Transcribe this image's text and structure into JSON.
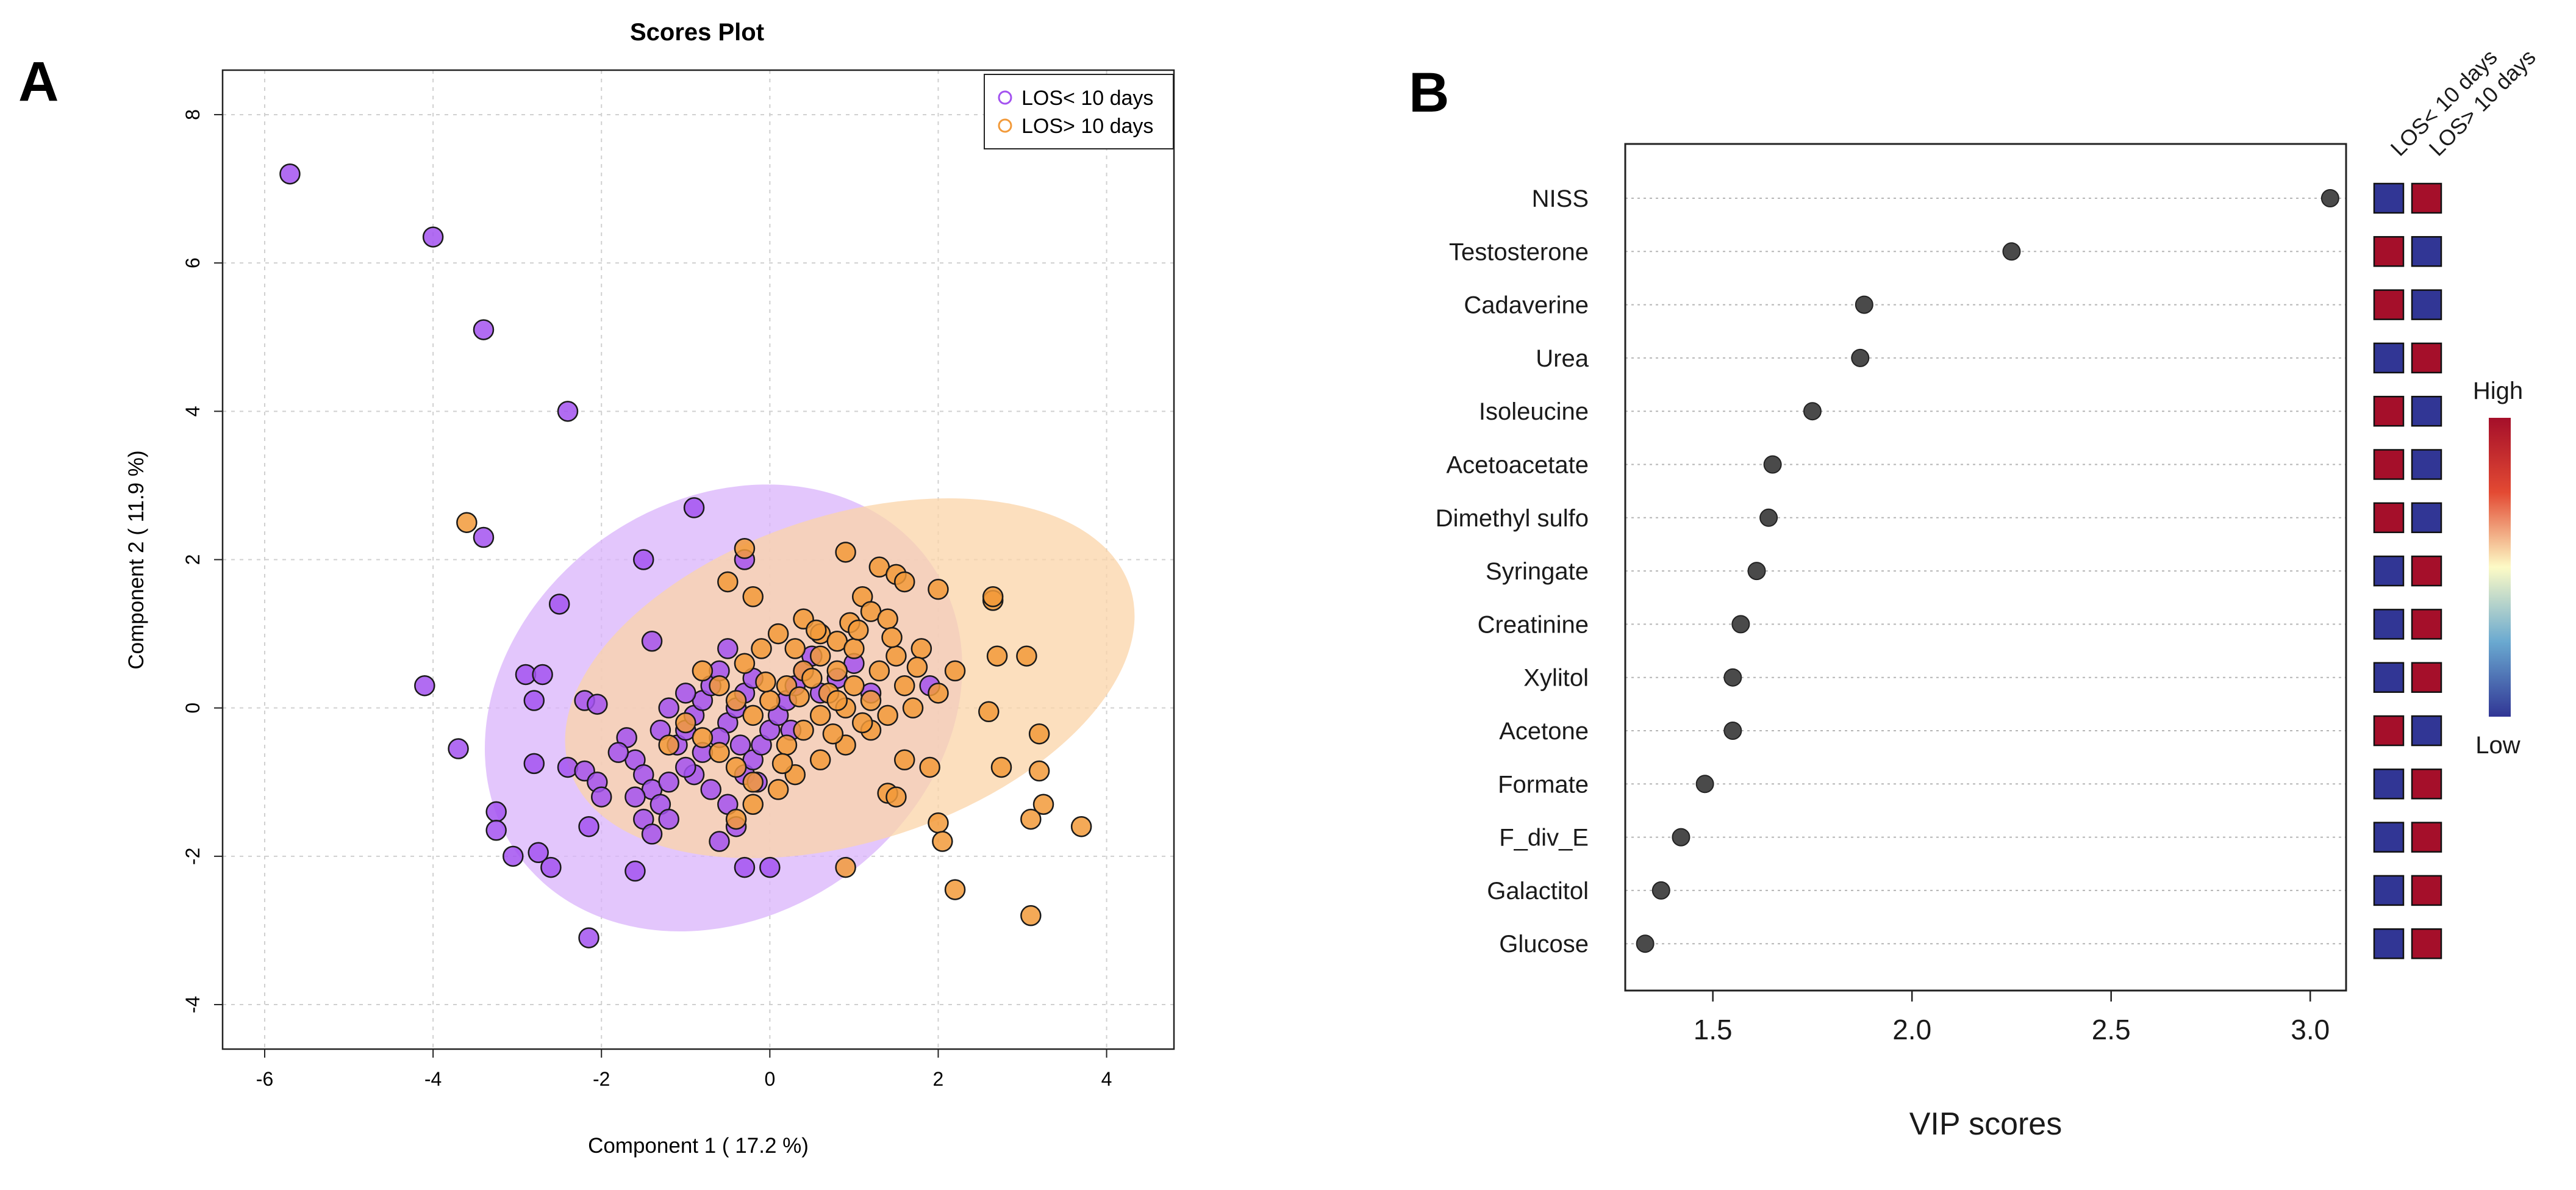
{
  "panels": {
    "a_label": "A",
    "b_label": "B"
  },
  "chart_data": [
    {
      "type": "scatter",
      "title": "Scores Plot",
      "xlabel": "Component 1 ( 17.2 %)",
      "ylabel": "Component 2 ( 11.9 %)",
      "xlim": [
        -6.5,
        4.8
      ],
      "ylim": [
        -4.6,
        8.6
      ],
      "xticks": [
        -6,
        -4,
        -2,
        0,
        2,
        4
      ],
      "yticks": [
        -4,
        -2,
        0,
        2,
        4,
        6,
        8
      ],
      "grid": true,
      "legend_position": "top-right",
      "series": [
        {
          "name": "LOS< 10 days",
          "color": "#a352f0",
          "ellipse": {
            "center": [
              -0.55,
              0.0
            ],
            "rx": 3.0,
            "ry": 2.8,
            "rotation_deg": 35,
            "fill": "#d9b3fb"
          },
          "points": [
            [
              -5.7,
              7.2
            ],
            [
              -4.0,
              6.35
            ],
            [
              -3.4,
              5.1
            ],
            [
              -2.4,
              4.0
            ],
            [
              -0.9,
              2.7
            ],
            [
              -3.4,
              2.3
            ],
            [
              -0.3,
              2.0
            ],
            [
              -1.5,
              2.0
            ],
            [
              -2.5,
              1.4
            ],
            [
              -1.4,
              0.9
            ],
            [
              -0.5,
              0.8
            ],
            [
              -4.1,
              0.3
            ],
            [
              -2.9,
              0.45
            ],
            [
              -2.7,
              0.45
            ],
            [
              -2.8,
              0.1
            ],
            [
              -2.2,
              0.1
            ],
            [
              -2.05,
              0.05
            ],
            [
              -3.7,
              -0.55
            ],
            [
              -2.8,
              -0.75
            ],
            [
              -2.4,
              -0.8
            ],
            [
              -2.2,
              -0.85
            ],
            [
              -2.05,
              -1.0
            ],
            [
              -2.0,
              -1.2
            ],
            [
              -3.25,
              -1.4
            ],
            [
              -3.25,
              -1.65
            ],
            [
              -3.05,
              -2.0
            ],
            [
              -2.75,
              -1.95
            ],
            [
              -2.6,
              -2.15
            ],
            [
              -2.15,
              -1.6
            ],
            [
              -1.6,
              -2.2
            ],
            [
              -2.15,
              -3.1
            ],
            [
              -0.3,
              -2.15
            ],
            [
              0.0,
              -2.15
            ],
            [
              -1.6,
              -0.7
            ],
            [
              -1.5,
              -0.9
            ],
            [
              -1.4,
              -1.1
            ],
            [
              -1.3,
              -1.3
            ],
            [
              -1.5,
              -1.5
            ],
            [
              -1.4,
              -1.7
            ],
            [
              -1.2,
              -1.5
            ],
            [
              -1.6,
              -1.2
            ],
            [
              -1.1,
              -0.5
            ],
            [
              -1.0,
              -0.3
            ],
            [
              -0.9,
              -0.1
            ],
            [
              -0.8,
              0.1
            ],
            [
              -0.7,
              0.3
            ],
            [
              -0.6,
              0.5
            ],
            [
              -1.3,
              -0.3
            ],
            [
              -1.2,
              0.0
            ],
            [
              -1.0,
              0.2
            ],
            [
              -0.5,
              -0.2
            ],
            [
              -0.4,
              0.0
            ],
            [
              -0.3,
              0.2
            ],
            [
              -0.2,
              0.4
            ],
            [
              -0.9,
              -0.9
            ],
            [
              -0.7,
              -1.1
            ],
            [
              -0.5,
              -1.3
            ],
            [
              -0.3,
              -0.9
            ],
            [
              -0.2,
              -0.7
            ],
            [
              -0.1,
              -0.5
            ],
            [
              0.0,
              -0.3
            ],
            [
              0.1,
              -0.1
            ],
            [
              0.2,
              0.1
            ],
            [
              0.3,
              0.3
            ],
            [
              0.4,
              0.5
            ],
            [
              0.5,
              0.7
            ],
            [
              -0.6,
              -0.4
            ],
            [
              -0.8,
              -0.6
            ],
            [
              -1.0,
              -0.8
            ],
            [
              -1.2,
              -1.0
            ],
            [
              -0.4,
              -1.6
            ],
            [
              -0.6,
              -1.8
            ],
            [
              0.6,
              0.2
            ],
            [
              0.8,
              0.4
            ],
            [
              1.0,
              0.6
            ],
            [
              1.2,
              0.2
            ],
            [
              1.9,
              0.3
            ],
            [
              -1.7,
              -0.4
            ],
            [
              -1.8,
              -0.6
            ],
            [
              -0.15,
              -1.0
            ],
            [
              -0.35,
              -0.5
            ],
            [
              0.25,
              -0.3
            ]
          ]
        },
        {
          "name": "LOS> 10 days",
          "color": "#f29a3a",
          "ellipse": {
            "center": [
              0.95,
              0.4
            ],
            "rx": 3.5,
            "ry": 2.2,
            "rotation_deg": 18,
            "fill": "#fbd4a8"
          },
          "points": [
            [
              -3.6,
              2.5
            ],
            [
              -0.3,
              2.15
            ],
            [
              0.9,
              2.1
            ],
            [
              1.3,
              1.9
            ],
            [
              1.5,
              1.8
            ],
            [
              1.6,
              1.7
            ],
            [
              2.0,
              1.6
            ],
            [
              2.65,
              1.45
            ],
            [
              2.65,
              1.5
            ],
            [
              1.1,
              1.5
            ],
            [
              1.2,
              1.3
            ],
            [
              1.4,
              1.2
            ],
            [
              -0.5,
              1.7
            ],
            [
              -0.2,
              1.5
            ],
            [
              0.4,
              1.2
            ],
            [
              0.6,
              1.0
            ],
            [
              0.8,
              0.9
            ],
            [
              1.0,
              0.8
            ],
            [
              1.5,
              0.7
            ],
            [
              1.8,
              0.8
            ],
            [
              2.7,
              0.7
            ],
            [
              3.05,
              0.7
            ],
            [
              2.2,
              0.5
            ],
            [
              2.0,
              0.2
            ],
            [
              1.7,
              0.0
            ],
            [
              1.4,
              -0.1
            ],
            [
              1.2,
              -0.3
            ],
            [
              0.9,
              -0.5
            ],
            [
              0.6,
              -0.7
            ],
            [
              0.3,
              -0.9
            ],
            [
              0.1,
              -1.1
            ],
            [
              -0.2,
              -1.3
            ],
            [
              -0.4,
              -1.5
            ],
            [
              2.6,
              -0.05
            ],
            [
              3.2,
              -0.35
            ],
            [
              3.2,
              -0.85
            ],
            [
              2.75,
              -0.8
            ],
            [
              3.25,
              -1.3
            ],
            [
              3.1,
              -1.5
            ],
            [
              3.7,
              -1.6
            ],
            [
              2.0,
              -1.55
            ],
            [
              2.05,
              -1.8
            ],
            [
              2.2,
              -2.45
            ],
            [
              3.1,
              -2.8
            ],
            [
              0.9,
              -2.15
            ],
            [
              1.4,
              -1.15
            ],
            [
              1.5,
              -1.2
            ],
            [
              1.9,
              -0.8
            ],
            [
              1.6,
              -0.7
            ],
            [
              -0.8,
              0.5
            ],
            [
              -0.6,
              0.3
            ],
            [
              -0.4,
              0.1
            ],
            [
              -0.2,
              -0.1
            ],
            [
              0.0,
              0.1
            ],
            [
              0.2,
              0.3
            ],
            [
              0.4,
              0.5
            ],
            [
              0.6,
              0.7
            ],
            [
              0.8,
              0.5
            ],
            [
              1.0,
              0.3
            ],
            [
              1.2,
              0.1
            ],
            [
              -0.3,
              0.6
            ],
            [
              -0.1,
              0.8
            ],
            [
              0.1,
              1.0
            ],
            [
              0.3,
              0.8
            ],
            [
              0.5,
              0.4
            ],
            [
              0.7,
              0.2
            ],
            [
              0.9,
              0.0
            ],
            [
              1.1,
              -0.2
            ],
            [
              -1.0,
              -0.2
            ],
            [
              -0.8,
              -0.4
            ],
            [
              -0.6,
              -0.6
            ],
            [
              -0.4,
              -0.8
            ],
            [
              -0.2,
              -1.0
            ],
            [
              0.2,
              -0.5
            ],
            [
              0.4,
              -0.3
            ],
            [
              0.6,
              -0.1
            ],
            [
              0.8,
              0.1
            ],
            [
              1.3,
              0.5
            ],
            [
              1.6,
              0.3
            ],
            [
              1.75,
              0.55
            ],
            [
              1.45,
              0.95
            ],
            [
              0.95,
              1.15
            ],
            [
              0.55,
              1.05
            ],
            [
              -1.2,
              -0.5
            ],
            [
              0.15,
              -0.75
            ],
            [
              0.75,
              -0.35
            ],
            [
              1.05,
              1.05
            ],
            [
              0.35,
              0.15
            ],
            [
              -0.05,
              0.35
            ]
          ]
        }
      ]
    },
    {
      "type": "dot",
      "xlabel": "VIP scores",
      "xlim": [
        1.28,
        3.09
      ],
      "xticks": [
        "1.5",
        "2.0",
        "2.5",
        "3.0"
      ],
      "grid": true,
      "features": [
        "NISS",
        "Testosterone",
        "Cadaverine",
        "Urea",
        "Isoleucine",
        "Acetoacetate",
        "Dimethyl sulfo",
        "Syringate",
        "Creatinine",
        "Xylitol",
        "Acetone",
        "Formate",
        "F_div_E",
        "Galactitol",
        "Glucose"
      ],
      "values": [
        3.05,
        2.25,
        1.88,
        1.87,
        1.75,
        1.65,
        1.64,
        1.61,
        1.57,
        1.55,
        1.55,
        1.48,
        1.42,
        1.37,
        1.33
      ],
      "heatmap_columns": [
        "LOS< 10 days",
        "LOS> 10 days"
      ],
      "heatmap_levels": [
        [
          "Low",
          "High"
        ],
        [
          "High",
          "Low"
        ],
        [
          "High",
          "Low"
        ],
        [
          "Low",
          "High"
        ],
        [
          "High",
          "Low"
        ],
        [
          "High",
          "Low"
        ],
        [
          "High",
          "Low"
        ],
        [
          "Low",
          "High"
        ],
        [
          "Low",
          "High"
        ],
        [
          "Low",
          "High"
        ],
        [
          "High",
          "Low"
        ],
        [
          "Low",
          "High"
        ],
        [
          "Low",
          "High"
        ],
        [
          "Low",
          "High"
        ],
        [
          "Low",
          "High"
        ]
      ],
      "colorbar": {
        "high_label": "High",
        "low_label": "Low",
        "high_color": "#a50f2a",
        "mid_color": "#fdfbc6",
        "low_color": "#313695"
      }
    }
  ]
}
